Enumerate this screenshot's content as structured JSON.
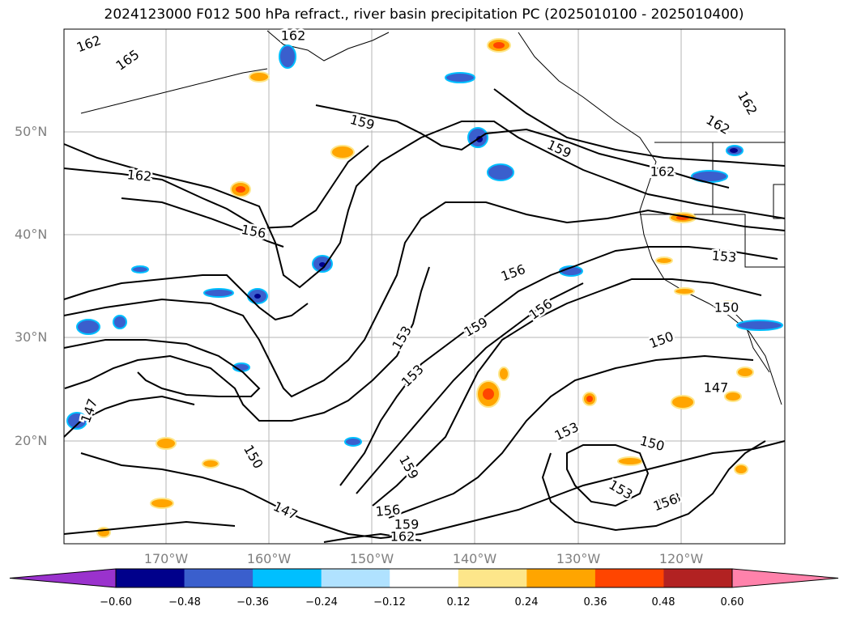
{
  "title": "2024123000 F012 500 hPa refract., river basin precipitation PC (2025010100 - 2025010400)",
  "latitude_labels": [
    "50°N",
    "40°N",
    "30°N",
    "20°N"
  ],
  "longitude_labels": [
    "170°W",
    "160°W",
    "150°W",
    "140°W",
    "130°W",
    "120°W"
  ],
  "contour_labels": [
    "162",
    "165",
    "162",
    "159",
    "159",
    "162",
    "162",
    "162",
    "162",
    "156",
    "153",
    "156",
    "159",
    "156",
    "153",
    "153",
    "153",
    "150",
    "147",
    "150",
    "150",
    "147",
    "147",
    "153",
    "150",
    "153",
    "156",
    "159",
    "162",
    "156",
    "159",
    "150"
  ],
  "colorbar": {
    "ticks": [
      "−0.60",
      "−0.48",
      "−0.36",
      "−0.24",
      "−0.12",
      "0.12",
      "0.24",
      "0.36",
      "0.48",
      "0.60"
    ],
    "colors": [
      "#9a32cd",
      "#00008b",
      "#3a5fcd",
      "#00bfff",
      "#b0e2ff",
      "#ffffff",
      "#fde68a",
      "#ffa500",
      "#ff4500",
      "#b22222",
      "#ff82ab"
    ],
    "extend": "both"
  },
  "styles": {
    "grid_color": "#b4b4b4",
    "contour_color": "#000000",
    "label_color": "#7f7f7f"
  }
}
